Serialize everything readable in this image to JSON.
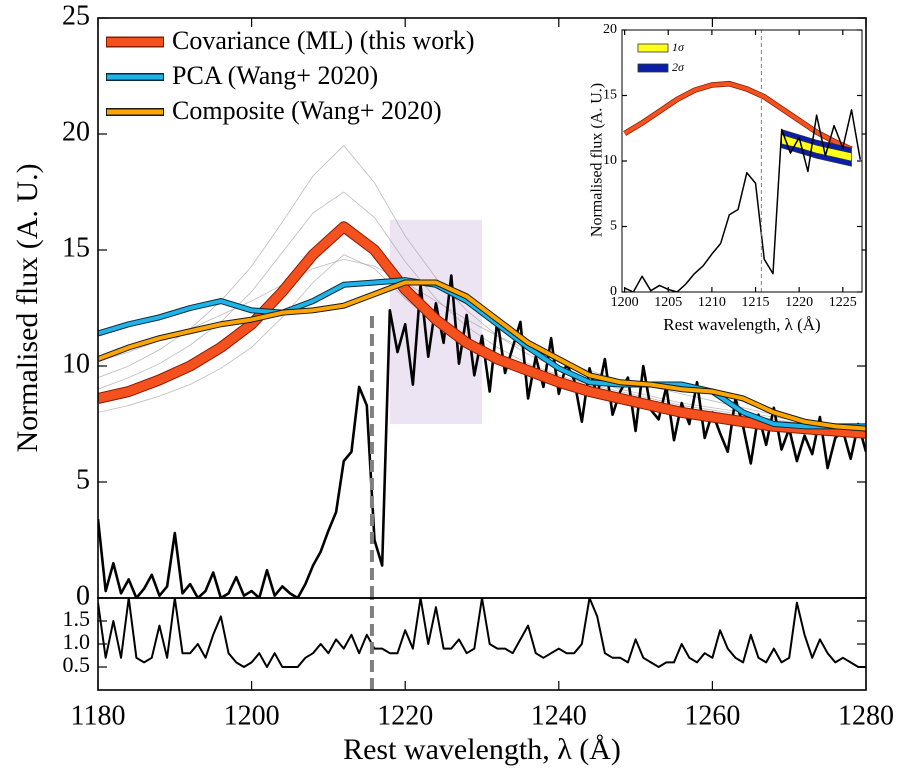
{
  "chart_data": [
    {
      "type": "line",
      "xlabel": "Rest wavelength, λ (Å)",
      "ylabel": "Normalised flux (A. U.)",
      "xlim": [
        1180,
        1280
      ],
      "ylim": [
        0,
        25
      ],
      "yticks": [
        0,
        5,
        10,
        15,
        20,
        25
      ],
      "legend": "upper left",
      "x": [
        1180,
        1184,
        1188,
        1192,
        1196,
        1200,
        1204,
        1208,
        1212,
        1216,
        1220,
        1224,
        1228,
        1232,
        1236,
        1240,
        1244,
        1248,
        1252,
        1256,
        1260,
        1264,
        1268,
        1272,
        1276,
        1280
      ],
      "series": [
        {
          "name": "Covariance (ML) (this work)",
          "color": "#f4511e",
          "edge": "#8a1c00",
          "values": [
            8.6,
            8.9,
            9.4,
            10.0,
            10.8,
            11.8,
            13.2,
            14.8,
            16.0,
            15.0,
            13.3,
            12.0,
            11.0,
            10.3,
            9.8,
            9.3,
            8.9,
            8.6,
            8.3,
            8.0,
            7.8,
            7.6,
            7.4,
            7.3,
            7.2,
            7.1
          ]
        },
        {
          "name": "PCA (Wang+ 2020)",
          "color": "#1eb4e8",
          "edge": "#0a2a40",
          "values": [
            11.4,
            11.8,
            12.1,
            12.5,
            12.8,
            12.4,
            12.3,
            12.8,
            13.5,
            13.6,
            13.7,
            13.5,
            12.8,
            11.8,
            10.8,
            9.9,
            9.3,
            9.2,
            9.2,
            9.2,
            8.9,
            8.0,
            7.5,
            7.4,
            7.4,
            7.4
          ]
        },
        {
          "name": "Composite (Wang+ 2020)",
          "color": "#ffa500",
          "edge": "#1a1a1a",
          "values": [
            10.3,
            10.8,
            11.2,
            11.5,
            11.8,
            12.0,
            12.3,
            12.4,
            12.6,
            13.1,
            13.6,
            13.6,
            13.0,
            12.0,
            11.0,
            10.3,
            9.6,
            9.3,
            9.2,
            9.0,
            8.9,
            8.6,
            8.0,
            7.6,
            7.4,
            7.3
          ]
        }
      ],
      "samples": [
        {
          "color": "#a0a0a0",
          "values": [
            9.5,
            10.0,
            10.7,
            11.6,
            12.8,
            14.3,
            16.2,
            18.2,
            19.5,
            17.9,
            15.6,
            13.8,
            12.4,
            11.3,
            10.5,
            9.9,
            9.4,
            9.0,
            8.7,
            8.4,
            8.2,
            8.0,
            7.8,
            7.6,
            7.5,
            7.4
          ]
        },
        {
          "color": "#a0a0a0",
          "values": [
            9.0,
            9.5,
            10.1,
            10.9,
            11.9,
            13.2,
            14.9,
            16.6,
            17.5,
            16.4,
            14.5,
            12.9,
            11.7,
            10.8,
            10.1,
            9.6,
            9.2,
            8.9,
            8.6,
            8.3,
            8.1,
            7.9,
            7.7,
            7.5,
            7.4,
            7.3
          ]
        },
        {
          "color": "#a0a0a0",
          "values": [
            10.2,
            10.6,
            11.1,
            11.6,
            12.2,
            12.8,
            13.5,
            14.2,
            14.6,
            14.3,
            13.6,
            12.8,
            12.0,
            11.3,
            10.7,
            10.2,
            9.8,
            9.4,
            9.1,
            8.8,
            8.5,
            8.2,
            7.9,
            7.7,
            7.5,
            7.3
          ]
        },
        {
          "color": "#a0a0a0",
          "values": [
            8.0,
            8.3,
            8.7,
            9.2,
            9.9,
            10.8,
            12.1,
            13.6,
            14.8,
            14.2,
            12.9,
            11.8,
            11.0,
            10.3,
            9.7,
            9.2,
            8.8,
            8.4,
            8.1,
            7.8,
            7.6,
            7.4,
            7.2,
            7.1,
            7.0,
            6.9
          ]
        }
      ],
      "observed": {
        "color": "#000000",
        "x": [
          1180,
          1181,
          1182,
          1183,
          1184,
          1185,
          1186,
          1187,
          1188,
          1189,
          1190,
          1191,
          1192,
          1193,
          1194,
          1195,
          1196,
          1197,
          1198,
          1199,
          1200,
          1201,
          1202,
          1203,
          1204,
          1205,
          1206,
          1207,
          1208,
          1209,
          1210,
          1211,
          1212,
          1213,
          1214,
          1215,
          1216,
          1217,
          1218,
          1219,
          1220,
          1221,
          1222,
          1223,
          1224,
          1225,
          1226,
          1227,
          1228,
          1229,
          1230,
          1231,
          1232,
          1233,
          1234,
          1235,
          1236,
          1237,
          1238,
          1239,
          1240,
          1241,
          1242,
          1243,
          1244,
          1245,
          1246,
          1247,
          1248,
          1249,
          1250,
          1251,
          1252,
          1253,
          1254,
          1255,
          1256,
          1257,
          1258,
          1259,
          1260,
          1261,
          1262,
          1263,
          1264,
          1265,
          1266,
          1267,
          1268,
          1269,
          1270,
          1271,
          1272,
          1273,
          1274,
          1275,
          1276,
          1277,
          1278,
          1279,
          1280
        ],
        "values": [
          3.4,
          0.3,
          1.5,
          0.2,
          0.8,
          0.0,
          0.4,
          1.0,
          0.1,
          0.5,
          2.8,
          0.2,
          0.6,
          0.0,
          0.3,
          1.1,
          0.0,
          0.2,
          0.9,
          0.1,
          0.3,
          0.0,
          1.2,
          0.1,
          0.5,
          0.2,
          0.0,
          0.6,
          1.4,
          2.0,
          2.9,
          3.7,
          5.9,
          6.3,
          9.1,
          8.3,
          2.5,
          1.4,
          12.4,
          10.6,
          11.8,
          9.2,
          13.5,
          10.4,
          12.7,
          11.0,
          13.9,
          10.1,
          12.2,
          9.6,
          11.3,
          8.9,
          12.0,
          9.7,
          10.8,
          11.9,
          8.6,
          10.4,
          9.1,
          11.2,
          8.8,
          10.1,
          9.4,
          7.6,
          9.9,
          8.7,
          10.3,
          7.9,
          8.9,
          9.5,
          7.2,
          10.0,
          8.1,
          7.7,
          9.1,
          6.8,
          8.4,
          7.5,
          9.3,
          6.9,
          8.0,
          7.1,
          6.3,
          8.6,
          7.4,
          5.8,
          7.9,
          6.6,
          8.2,
          6.4,
          7.3,
          5.9,
          7.0,
          6.2,
          7.8,
          5.6,
          6.9,
          7.2,
          6.0,
          7.5,
          6.3
        ]
      },
      "shaded_region": {
        "x": [
          1218,
          1230
        ],
        "y": [
          7.5,
          16.3
        ],
        "color": "#e9dff0"
      },
      "vline": {
        "x": 1215.67,
        "y": [
          0,
          12.4
        ],
        "color": "#808080"
      }
    },
    {
      "type": "line",
      "xlabel": "Rest wavelength, λ (Å)",
      "xlim": [
        1180,
        1280
      ],
      "ylim": [
        0,
        2
      ],
      "xticks": [
        1180,
        1200,
        1220,
        1240,
        1260,
        1280
      ],
      "yticks": [
        {
          "value": 0.5,
          "label": "0.5"
        },
        {
          "value": 1,
          "label": "1.0"
        },
        {
          "value": 1.5,
          "label": "1.5"
        }
      ],
      "x": [
        1180,
        1181,
        1182,
        1183,
        1184,
        1185,
        1186,
        1187,
        1188,
        1189,
        1190,
        1191,
        1192,
        1193,
        1194,
        1195,
        1196,
        1197,
        1198,
        1199,
        1200,
        1201,
        1202,
        1203,
        1204,
        1205,
        1206,
        1207,
        1208,
        1209,
        1210,
        1211,
        1212,
        1213,
        1214,
        1215,
        1216,
        1217,
        1218,
        1219,
        1220,
        1221,
        1222,
        1223,
        1224,
        1225,
        1226,
        1227,
        1228,
        1229,
        1230,
        1231,
        1232,
        1233,
        1234,
        1235,
        1236,
        1237,
        1238,
        1239,
        1240,
        1241,
        1242,
        1243,
        1244,
        1245,
        1246,
        1247,
        1248,
        1249,
        1250,
        1251,
        1252,
        1253,
        1254,
        1255,
        1256,
        1257,
        1258,
        1259,
        1260,
        1261,
        1262,
        1263,
        1264,
        1265,
        1266,
        1267,
        1268,
        1269,
        1270,
        1271,
        1272,
        1273,
        1274,
        1275,
        1276,
        1277,
        1278,
        1279,
        1280
      ],
      "color": "#000000",
      "values": [
        1.9,
        0.7,
        1.5,
        0.7,
        2.0,
        0.7,
        0.6,
        0.7,
        1.4,
        0.7,
        2.0,
        0.8,
        0.8,
        1.0,
        0.7,
        1.2,
        1.6,
        0.8,
        0.6,
        0.5,
        0.6,
        0.8,
        0.5,
        0.8,
        0.5,
        0.5,
        0.5,
        0.7,
        0.8,
        1.0,
        0.8,
        1.1,
        0.9,
        1.2,
        0.8,
        1.2,
        0.9,
        0.9,
        0.8,
        0.8,
        1.3,
        0.9,
        2.0,
        1.0,
        1.8,
        0.9,
        0.9,
        1.1,
        0.8,
        0.9,
        2.0,
        1.0,
        0.9,
        0.9,
        0.8,
        1.1,
        1.4,
        0.8,
        0.7,
        0.8,
        0.9,
        0.8,
        0.8,
        1.0,
        2.0,
        1.6,
        0.8,
        0.7,
        0.7,
        0.6,
        1.1,
        0.7,
        0.6,
        0.5,
        0.6,
        0.6,
        1.0,
        0.7,
        0.6,
        0.8,
        0.7,
        1.3,
        0.9,
        0.7,
        0.6,
        1.2,
        0.7,
        0.6,
        0.9,
        0.6,
        0.7,
        1.9,
        1.2,
        0.7,
        1.1,
        0.8,
        0.6,
        0.7,
        0.6,
        0.5,
        0.5
      ],
      "vline": {
        "x": 1215.67,
        "color": "#808080"
      }
    },
    {
      "type": "line",
      "xlabel": "Rest wavelength, λ (Å)",
      "ylabel": "Normalised flux (A. U.)",
      "xlim": [
        1199.7,
        1227.2
      ],
      "ylim": [
        0,
        20
      ],
      "xticks": [
        1200,
        1205,
        1210,
        1215,
        1220,
        1225
      ],
      "yticks": [
        0,
        5,
        10,
        15,
        20
      ],
      "legend": "upper left",
      "curve": {
        "color": "#f4511e",
        "edge": "#8a1c00",
        "x": [
          1200,
          1202,
          1204,
          1206,
          1208,
          1210,
          1212,
          1214,
          1216,
          1218,
          1220,
          1222,
          1224,
          1226
        ],
        "values": [
          12.1,
          12.9,
          13.8,
          14.7,
          15.4,
          15.8,
          15.9,
          15.5,
          14.9,
          14.0,
          13.1,
          12.2,
          11.5,
          10.9
        ]
      },
      "bands": [
        {
          "name": "2σ",
          "color": "#0a1fa8",
          "x": [
            1218,
            1220,
            1222,
            1224,
            1226
          ],
          "upper": [
            12.4,
            12.0,
            11.6,
            11.3,
            11.0
          ],
          "lower": [
            11.0,
            10.6,
            10.2,
            9.9,
            9.6
          ]
        },
        {
          "name": "1σ",
          "color": "#ffff1a",
          "x": [
            1218,
            1220,
            1222,
            1224,
            1226
          ],
          "upper": [
            12.0,
            11.6,
            11.2,
            10.9,
            10.6
          ],
          "lower": [
            11.3,
            11.0,
            10.6,
            10.3,
            10.0
          ]
        }
      ],
      "observed": {
        "color": "#000000",
        "x": [
          1200,
          1201,
          1202,
          1203,
          1204,
          1205,
          1206,
          1207,
          1208,
          1209,
          1210,
          1211,
          1212,
          1213,
          1214,
          1215,
          1216,
          1217,
          1218,
          1219,
          1220,
          1221,
          1222,
          1223,
          1224,
          1225,
          1226,
          1227
        ],
        "values": [
          0.3,
          0.0,
          1.2,
          0.1,
          0.5,
          0.2,
          0.0,
          0.6,
          1.4,
          2.0,
          2.9,
          3.7,
          5.9,
          6.3,
          9.1,
          8.3,
          2.5,
          1.4,
          12.4,
          10.6,
          11.8,
          9.2,
          13.5,
          10.4,
          12.7,
          11.0,
          13.9,
          10.1
        ]
      },
      "vline": {
        "x": 1215.67,
        "color": "#808080"
      }
    }
  ]
}
